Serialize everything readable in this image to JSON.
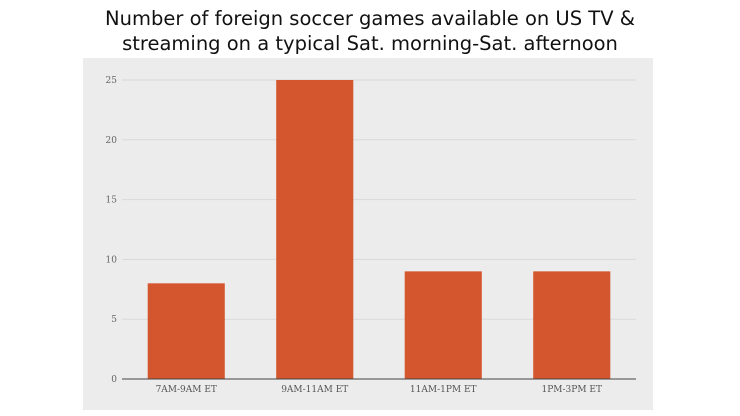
{
  "chart_data": {
    "type": "bar",
    "title_lines": [
      "Number of foreign soccer games available on US TV &",
      "streaming on a typical Sat. morning-Sat. afternoon"
    ],
    "categories": [
      "7AM-9AM ET",
      "9AM-11AM ET",
      "11AM-1PM ET",
      "1PM-3PM ET"
    ],
    "values": [
      8,
      25,
      9,
      9
    ],
    "xlabel": "",
    "ylabel": "",
    "ylim": [
      0,
      25
    ],
    "yticks": [
      0,
      5,
      10,
      15,
      20,
      25
    ],
    "grid": true,
    "legend": "none",
    "colors": {
      "bar": "#d4562e",
      "grid": "#d9d9d9",
      "axis": "#444444",
      "panel_bg": "#ececec"
    }
  }
}
